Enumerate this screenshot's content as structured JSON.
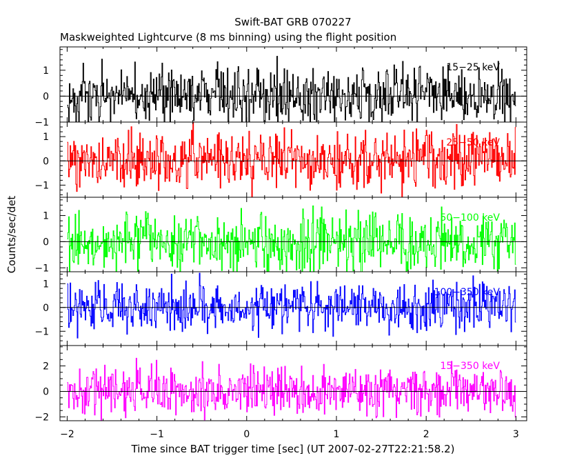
{
  "chart_data": {
    "type": "line",
    "title": "Swift-BAT GRB 070227",
    "subtitle": "Maskweighted Lightcurve (8 ms binning) using the flight position",
    "xlabel": "Time since BAT trigger time [sec] (UT 2007-02-27T22:21:58.2)",
    "ylabel": "Counts/sec/det",
    "xlim": [
      -2.08,
      3.12
    ],
    "x_ticks": [
      -2,
      -1,
      0,
      1,
      2,
      3
    ],
    "x_tick_labels": [
      "−2",
      "−1",
      "0",
      "1",
      "2",
      "3"
    ],
    "bin_seconds": 0.008,
    "x_start": -2.0,
    "x_end": 3.0,
    "grid": false,
    "panels": [
      {
        "name": "15−25 keV",
        "color": "#000000",
        "ylim": [
          -1.0,
          1.9
        ],
        "y_ticks": [
          -1,
          0,
          1
        ],
        "y_tick_labels": [
          "−1",
          "0",
          "1"
        ],
        "amplitude": 0.55,
        "clip": [
          -1.0,
          1.6
        ]
      },
      {
        "name": "25−50 keV",
        "color": "#ff0000",
        "ylim": [
          -1.5,
          1.6
        ],
        "y_ticks": [
          -1,
          0,
          1
        ],
        "y_tick_labels": [
          "−1",
          "0",
          "1"
        ],
        "amplitude": 0.6,
        "clip": [
          -1.5,
          1.6
        ]
      },
      {
        "name": "50−100 keV",
        "color": "#00ff00",
        "ylim": [
          -1.15,
          1.7
        ],
        "y_ticks": [
          -1,
          0,
          1
        ],
        "y_tick_labels": [
          "−1",
          "0",
          "1"
        ],
        "amplitude": 0.55,
        "clip": [
          -1.15,
          1.7
        ]
      },
      {
        "name": "100−350 keV",
        "color": "#0000ff",
        "ylim": [
          -1.6,
          1.5
        ],
        "y_ticks": [
          -1,
          0,
          1
        ],
        "y_tick_labels": [
          "−1",
          "0",
          "1"
        ],
        "amplitude": 0.5,
        "clip": [
          -1.6,
          1.5
        ]
      },
      {
        "name": "15−350 keV",
        "color": "#ff00ff",
        "ylim": [
          -2.3,
          3.6
        ],
        "y_ticks": [
          -2,
          0,
          2
        ],
        "y_tick_labels": [
          "−2",
          "0",
          "2"
        ],
        "amplitude": 0.95,
        "clip": [
          -2.3,
          3.6
        ]
      }
    ]
  }
}
